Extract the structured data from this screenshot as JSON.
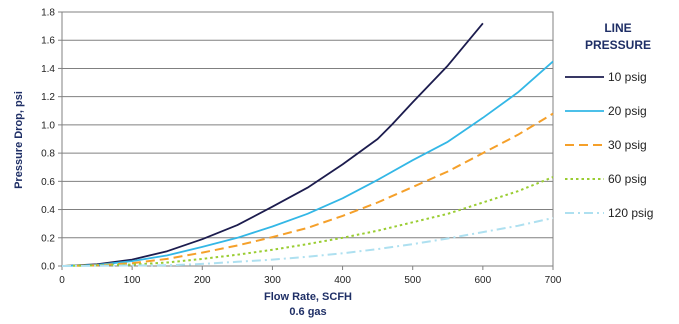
{
  "chart_data": {
    "type": "line",
    "title": "",
    "xlabel": "Flow Rate, SCFH",
    "xlabel_sub": "0.6 gas",
    "ylabel": "Pressure Drop, psi",
    "xlim": [
      0,
      700
    ],
    "ylim": [
      0,
      1.8
    ],
    "xticks": [
      "0",
      "100",
      "200",
      "300",
      "400",
      "500",
      "600",
      "700"
    ],
    "yticks": [
      "0.0",
      "0.2",
      "0.4",
      "0.6",
      "0.8",
      "1.0",
      "1.2",
      "1.4",
      "1.6",
      "1.8"
    ],
    "grid": "horizontal",
    "legend": {
      "title_line1": "LINE",
      "title_line2": "PRESSURE",
      "placement": "right"
    },
    "series": [
      {
        "name": "10 psig",
        "color": "#1c1c4e",
        "style": "solid",
        "points": [
          [
            0,
            0
          ],
          [
            50,
            0.012
          ],
          [
            100,
            0.045
          ],
          [
            150,
            0.105
          ],
          [
            200,
            0.19
          ],
          [
            250,
            0.29
          ],
          [
            300,
            0.42
          ],
          [
            350,
            0.555
          ],
          [
            400,
            0.72
          ],
          [
            450,
            0.9
          ],
          [
            470,
            1.0
          ],
          [
            500,
            1.16
          ],
          [
            550,
            1.42
          ],
          [
            600,
            1.72
          ]
        ]
      },
      {
        "name": "20 psig",
        "color": "#33b7e6",
        "style": "solid",
        "points": [
          [
            0,
            0
          ],
          [
            50,
            0.008
          ],
          [
            100,
            0.035
          ],
          [
            150,
            0.075
          ],
          [
            200,
            0.135
          ],
          [
            250,
            0.2
          ],
          [
            300,
            0.28
          ],
          [
            350,
            0.37
          ],
          [
            400,
            0.48
          ],
          [
            450,
            0.61
          ],
          [
            500,
            0.75
          ],
          [
            550,
            0.88
          ],
          [
            600,
            1.05
          ],
          [
            650,
            1.23
          ],
          [
            700,
            1.45
          ]
        ]
      },
      {
        "name": "30 psig",
        "color": "#f5a02a",
        "style": "dashed",
        "points": [
          [
            0,
            0
          ],
          [
            50,
            0.005
          ],
          [
            100,
            0.02
          ],
          [
            150,
            0.05
          ],
          [
            200,
            0.095
          ],
          [
            250,
            0.145
          ],
          [
            300,
            0.205
          ],
          [
            350,
            0.27
          ],
          [
            400,
            0.355
          ],
          [
            450,
            0.45
          ],
          [
            500,
            0.56
          ],
          [
            550,
            0.67
          ],
          [
            600,
            0.8
          ],
          [
            650,
            0.93
          ],
          [
            700,
            1.08
          ]
        ]
      },
      {
        "name": "60 psig",
        "color": "#9acd32",
        "style": "dotted",
        "points": [
          [
            0,
            0
          ],
          [
            100,
            0.01
          ],
          [
            150,
            0.025
          ],
          [
            200,
            0.05
          ],
          [
            250,
            0.08
          ],
          [
            300,
            0.115
          ],
          [
            350,
            0.155
          ],
          [
            400,
            0.2
          ],
          [
            450,
            0.25
          ],
          [
            500,
            0.31
          ],
          [
            550,
            0.37
          ],
          [
            600,
            0.45
          ],
          [
            650,
            0.53
          ],
          [
            700,
            0.63
          ]
        ]
      },
      {
        "name": "120 psig",
        "color": "#aee0f0",
        "style": "dashdot",
        "points": [
          [
            0,
            0
          ],
          [
            150,
            0.005
          ],
          [
            200,
            0.015
          ],
          [
            250,
            0.03
          ],
          [
            300,
            0.045
          ],
          [
            350,
            0.065
          ],
          [
            400,
            0.09
          ],
          [
            450,
            0.12
          ],
          [
            500,
            0.155
          ],
          [
            550,
            0.195
          ],
          [
            600,
            0.24
          ],
          [
            650,
            0.285
          ],
          [
            700,
            0.34
          ]
        ]
      }
    ]
  }
}
